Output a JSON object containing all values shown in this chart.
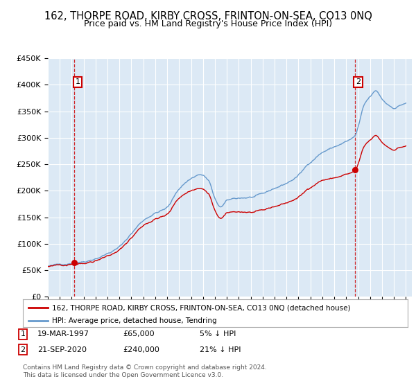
{
  "title": "162, THORPE ROAD, KIRBY CROSS, FRINTON-ON-SEA, CO13 0NQ",
  "subtitle": "Price paid vs. HM Land Registry's House Price Index (HPI)",
  "ylim": [
    0,
    450000
  ],
  "yticks": [
    0,
    50000,
    100000,
    150000,
    200000,
    250000,
    300000,
    350000,
    400000,
    450000
  ],
  "ytick_labels": [
    "£0",
    "£50K",
    "£100K",
    "£150K",
    "£200K",
    "£250K",
    "£300K",
    "£350K",
    "£400K",
    "£450K"
  ],
  "plot_bg_color": "#dce9f5",
  "fig_bg_color": "#ffffff",
  "grid_color": "#ffffff",
  "line1_color": "#cc0000",
  "line2_color": "#6699cc",
  "title_fontsize": 10.5,
  "subtitle_fontsize": 9,
  "sale1_date_decimal": 1997.21,
  "sale1_price": 65000,
  "sale1_label": "1",
  "sale2_date_decimal": 2020.72,
  "sale2_price": 240000,
  "sale2_label": "2",
  "legend_line1": "162, THORPE ROAD, KIRBY CROSS, FRINTON-ON-SEA, CO13 0NQ (detached house)",
  "legend_line2": "HPI: Average price, detached house, Tendring",
  "copyright": "Contains HM Land Registry data © Crown copyright and database right 2024.\nThis data is licensed under the Open Government Licence v3.0.",
  "xmin": 1995.0,
  "xmax": 2025.5
}
